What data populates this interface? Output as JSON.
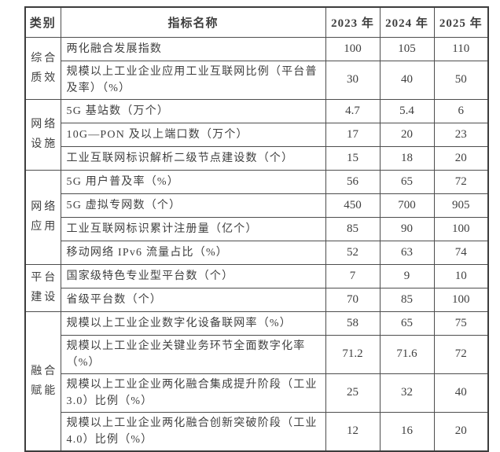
{
  "table": {
    "headers": {
      "category": "类别",
      "indicator": "指标名称",
      "years": [
        "2023 年",
        "2024 年",
        "2025 年"
      ]
    },
    "groups": [
      {
        "category": "综合质效",
        "rows": [
          {
            "indicator": "两化融合发展指数",
            "values": [
              "100",
              "105",
              "110"
            ]
          },
          {
            "indicator": "规模以上工业企业应用工业互联网比例（平台普及率）（%）",
            "values": [
              "30",
              "40",
              "50"
            ]
          }
        ]
      },
      {
        "category": "网络设施",
        "rows": [
          {
            "indicator": "5G 基站数（万个）",
            "values": [
              "4.7",
              "5.4",
              "6"
            ]
          },
          {
            "indicator": "10G—PON 及以上端口数（万个）",
            "values": [
              "17",
              "20",
              "23"
            ]
          },
          {
            "indicator": "工业互联网标识解析二级节点建设数（个）",
            "values": [
              "15",
              "18",
              "20"
            ]
          }
        ]
      },
      {
        "category": "网络应用",
        "rows": [
          {
            "indicator": "5G 用户普及率（%）",
            "values": [
              "56",
              "65",
              "72"
            ]
          },
          {
            "indicator": "5G 虚拟专网数（个）",
            "values": [
              "450",
              "700",
              "905"
            ]
          },
          {
            "indicator": "工业互联网标识累计注册量（亿个）",
            "values": [
              "85",
              "90",
              "100"
            ]
          },
          {
            "indicator": "移动网络 IPv6 流量占比（%）",
            "values": [
              "52",
              "63",
              "74"
            ]
          }
        ]
      },
      {
        "category": "平台建设",
        "rows": [
          {
            "indicator": "国家级特色专业型平台数（个）",
            "values": [
              "7",
              "9",
              "10"
            ]
          },
          {
            "indicator": "省级平台数（个）",
            "values": [
              "70",
              "85",
              "100"
            ]
          }
        ]
      },
      {
        "category": "融合赋能",
        "rows": [
          {
            "indicator": "规模以上工业企业数字化设备联网率（%）",
            "values": [
              "58",
              "65",
              "75"
            ]
          },
          {
            "indicator": "规模以上工业企业关键业务环节全面数字化率（%）",
            "values": [
              "71.2",
              "71.6",
              "72"
            ]
          },
          {
            "indicator": "规模以上工业企业两化融合集成提升阶段（工业 3.0）比例（%）",
            "values": [
              "25",
              "32",
              "40"
            ]
          },
          {
            "indicator": "规模以上工业企业两化融合创新突破阶段（工业 4.0）比例（%）",
            "values": [
              "12",
              "16",
              "20"
            ]
          }
        ]
      }
    ]
  },
  "colors": {
    "text": "#3f3f3f",
    "border": "#4d4d4d",
    "background": "#ffffff"
  }
}
